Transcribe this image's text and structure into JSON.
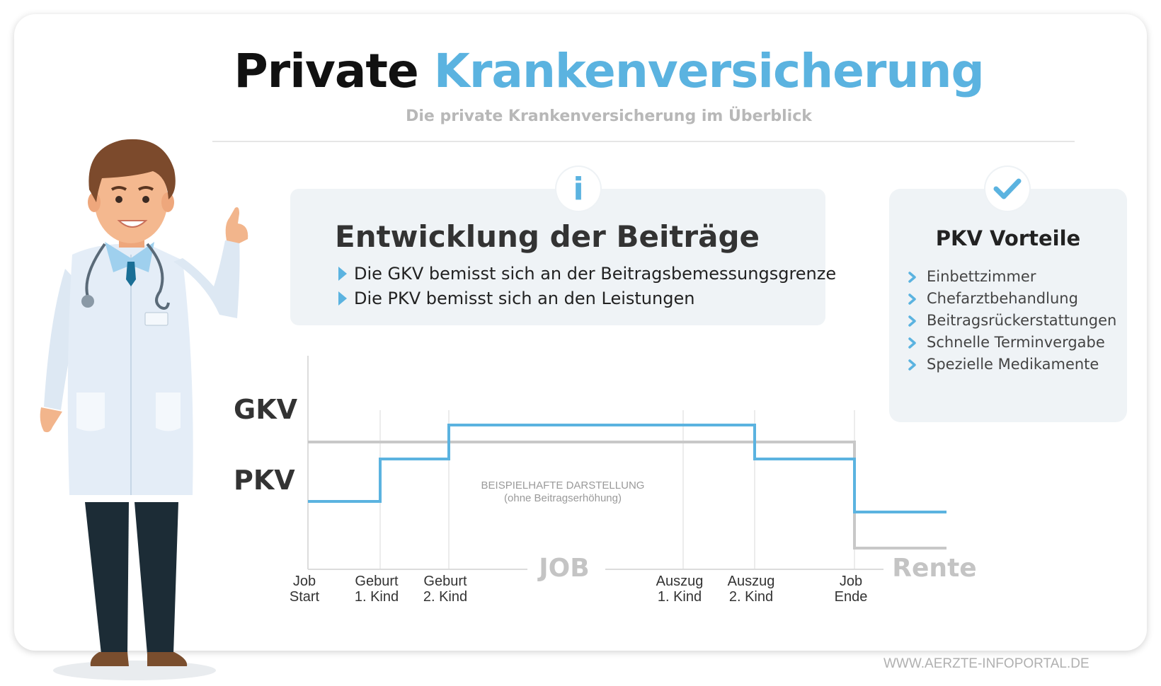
{
  "header": {
    "title_part1": "Private",
    "title_part2": "Krankenversicherung",
    "subtitle": "Die private Krankenversicherung im Überblick"
  },
  "colors": {
    "accent": "#5bb3e0",
    "pkv_line": "#5bb3e0",
    "gkv_line": "#c8c8c8",
    "box_background": "#eff3f6"
  },
  "info_box": {
    "icon": "info-icon",
    "badge_text": "i",
    "title": "Entwicklung der Beiträge",
    "items": [
      "Die GKV bemisst sich an der Beitragsbemessungsgrenze",
      "Die PKV bemisst sich an den Leistungen"
    ]
  },
  "advantages": {
    "icon": "checkmark-icon",
    "title": "PKV Vorteile",
    "items": [
      "Einbettzimmer",
      "Chefarztbehandlung",
      "Beitragsrückerstattungen",
      "Schnelle Terminvergabe",
      "Spezielle Medikamente"
    ]
  },
  "chart_data": {
    "type": "line",
    "y_labels": {
      "GKV": "GKV",
      "PKV": "PKV"
    },
    "note_line1": "BEISPIELHAFTE DARSTELLUNG",
    "note_line2": "(ohne Beitragserhöhung)",
    "phases": {
      "job": "JOB",
      "retirement": "Rente"
    },
    "milestones": [
      {
        "line1": "Job",
        "line2": "Start"
      },
      {
        "line1": "Geburt",
        "line2": "1. Kind"
      },
      {
        "line1": "Geburt",
        "line2": "2. Kind"
      },
      {
        "line1": "Auszug",
        "line2": "1. Kind"
      },
      {
        "line1": "Auszug",
        "line2": "2. Kind"
      },
      {
        "line1": "Job",
        "line2": "Ende"
      }
    ],
    "x_domain": [
      0,
      6
    ],
    "y_domain": [
      0,
      10
    ],
    "series": [
      {
        "name": "GKV",
        "points": [
          [
            0,
            6
          ],
          [
            5,
            6
          ],
          [
            5,
            1
          ],
          [
            6.3,
            1
          ]
        ]
      },
      {
        "name": "PKV",
        "points": [
          [
            0,
            3.2
          ],
          [
            1,
            3.2
          ],
          [
            1,
            5.2
          ],
          [
            2,
            5.2
          ],
          [
            2,
            6.8
          ],
          [
            4,
            6.8
          ],
          [
            4,
            5.2
          ],
          [
            5,
            5.2
          ],
          [
            5,
            3.2
          ],
          [
            5,
            3.2
          ],
          [
            5,
            2.7
          ],
          [
            6.3,
            2.7
          ]
        ]
      }
    ]
  },
  "doctor": {
    "figure": "doctor-illustration"
  },
  "footer": {
    "url": "WWW.AERZTE-INFOPORTAL.DE"
  }
}
